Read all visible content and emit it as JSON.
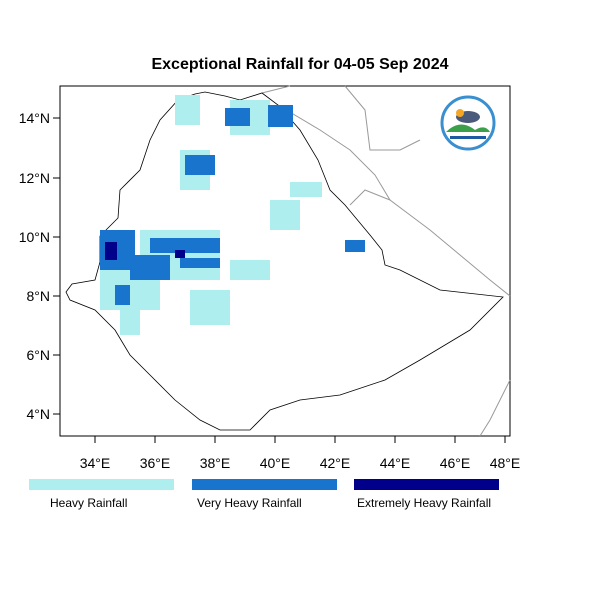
{
  "title": "Exceptional Rainfall for 04-05 Sep 2024",
  "x_ticks": [
    "34°E",
    "36°E",
    "38°E",
    "40°E",
    "42°E",
    "44°E",
    "46°E",
    "48°E"
  ],
  "y_ticks": [
    "14°N",
    "12°N",
    "10°N",
    "8°N",
    "6°N",
    "4°N"
  ],
  "legend": [
    {
      "label": "Heavy Rainfall",
      "color": "#aeeeee"
    },
    {
      "label": "Very Heavy Rainfall",
      "color": "#1874cd"
    },
    {
      "label": "Extremely Heavy Rainfall",
      "color": "#00008b"
    }
  ],
  "logo": "Ethiopian Meteorology Institute"
}
